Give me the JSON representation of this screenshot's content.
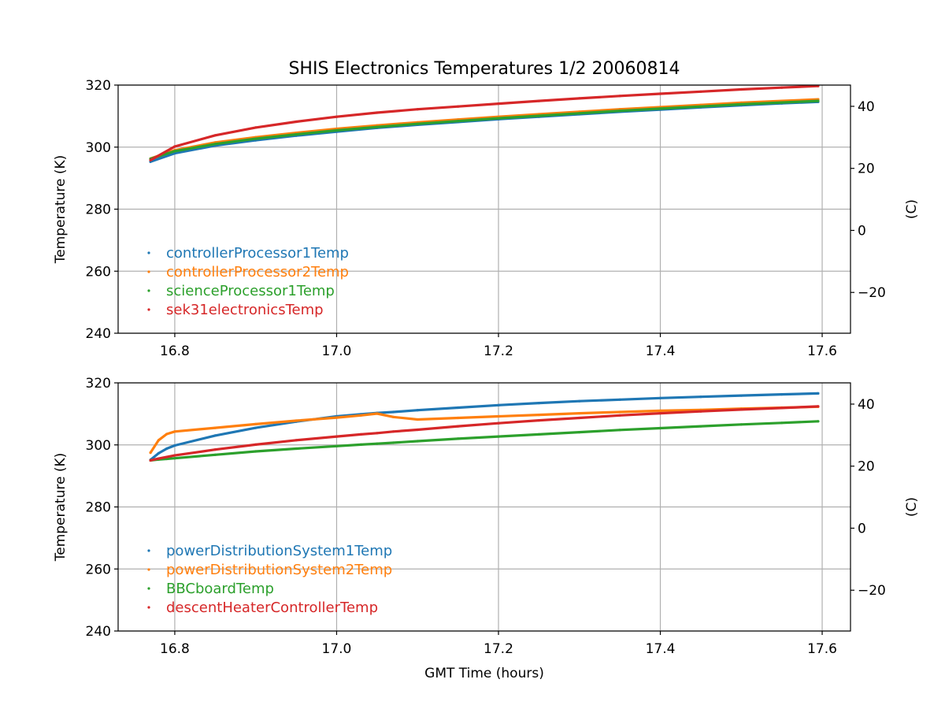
{
  "figure": {
    "title": "SHIS Electronics Temperatures 1/2 20060814"
  },
  "chart_data": [
    {
      "type": "scatter",
      "xlabel": "",
      "ylabel": "Temperature (K)",
      "ylabel_right": "(C)",
      "xlim": [
        16.73,
        17.635
      ],
      "ylim": [
        240,
        320
      ],
      "ylim_right": [
        -33.15,
        46.85
      ],
      "x_ticks": [
        "16.8",
        "17.0",
        "17.2",
        "17.4",
        "17.6"
      ],
      "y_ticks": [
        "240",
        "260",
        "280",
        "300",
        "320"
      ],
      "y_ticks_right": [
        "−20",
        "0",
        "20",
        "40"
      ],
      "grid": true,
      "legend_position": "lower-left",
      "x": [
        16.77,
        16.8,
        16.85,
        16.9,
        16.95,
        17.0,
        17.05,
        17.1,
        17.15,
        17.2,
        17.25,
        17.3,
        17.35,
        17.4,
        17.45,
        17.5,
        17.55,
        17.595
      ],
      "series": [
        {
          "name": "controllerProcessor1Temp",
          "color": "#1f77b4",
          "values": [
            295.3,
            298.0,
            300.5,
            302.2,
            303.7,
            305.0,
            306.2,
            307.2,
            308.1,
            309.0,
            309.8,
            310.6,
            311.4,
            312.1,
            312.8,
            313.5,
            314.1,
            314.6
          ]
        },
        {
          "name": "controllerProcessor2Temp",
          "color": "#ff7f0e",
          "values": [
            296.3,
            299.0,
            301.5,
            303.2,
            304.6,
            305.9,
            307.0,
            308.0,
            308.9,
            309.8,
            310.6,
            311.4,
            312.2,
            312.9,
            313.6,
            314.3,
            314.9,
            315.4
          ]
        },
        {
          "name": "scienceProcessor1Temp",
          "color": "#2ca02c",
          "values": [
            296.2,
            298.7,
            301.0,
            302.7,
            304.1,
            305.4,
            306.5,
            307.5,
            308.4,
            309.3,
            310.1,
            310.9,
            311.7,
            312.4,
            313.1,
            313.8,
            314.4,
            314.9
          ]
        },
        {
          "name": "sek31electronicsTemp",
          "color": "#d62728",
          "values": [
            295.8,
            300.2,
            303.8,
            306.3,
            308.2,
            309.8,
            311.1,
            312.2,
            313.1,
            314.0,
            314.9,
            315.7,
            316.5,
            317.2,
            317.9,
            318.6,
            319.2,
            319.7
          ]
        }
      ]
    },
    {
      "type": "scatter",
      "xlabel": "GMT Time (hours)",
      "ylabel": "Temperature (K)",
      "ylabel_right": "(C)",
      "xlim": [
        16.73,
        17.635
      ],
      "ylim": [
        240,
        320
      ],
      "ylim_right": [
        -33.15,
        46.85
      ],
      "x_ticks": [
        "16.8",
        "17.0",
        "17.2",
        "17.4",
        "17.6"
      ],
      "y_ticks": [
        "240",
        "260",
        "280",
        "300",
        "320"
      ],
      "y_ticks_right": [
        "−20",
        "0",
        "20",
        "40"
      ],
      "grid": true,
      "legend_position": "lower-left",
      "x": [
        16.77,
        16.78,
        16.79,
        16.8,
        16.85,
        16.9,
        16.95,
        17.0,
        17.03,
        17.05,
        17.07,
        17.1,
        17.15,
        17.2,
        17.25,
        17.3,
        17.35,
        17.4,
        17.45,
        17.5,
        17.55,
        17.595
      ],
      "series": [
        {
          "name": "powerDistributionSystem1Temp",
          "color": "#1f77b4",
          "values": [
            295.2,
            297.3,
            298.8,
            299.8,
            303.0,
            305.5,
            307.5,
            309.2,
            309.9,
            310.3,
            310.6,
            311.2,
            312.0,
            312.8,
            313.5,
            314.1,
            314.6,
            315.1,
            315.5,
            315.9,
            316.3,
            316.6
          ]
        },
        {
          "name": "powerDistributionSystem2Temp",
          "color": "#ff7f0e",
          "values": [
            297.5,
            301.5,
            303.5,
            304.3,
            305.5,
            306.7,
            307.8,
            308.8,
            309.5,
            310.1,
            309.0,
            308.2,
            308.7,
            309.2,
            309.7,
            310.2,
            310.6,
            311.0,
            311.3,
            311.7,
            312.0,
            312.3
          ]
        },
        {
          "name": "BBCboardTemp",
          "color": "#2ca02c",
          "values": [
            295.0,
            295.3,
            295.5,
            295.7,
            296.8,
            297.9,
            298.8,
            299.6,
            300.1,
            300.4,
            300.7,
            301.2,
            302.0,
            302.7,
            303.4,
            304.1,
            304.8,
            305.4,
            306.0,
            306.6,
            307.1,
            307.6
          ]
        },
        {
          "name": "descentHeaterControllerTemp",
          "color": "#d62728",
          "values": [
            295.0,
            295.6,
            296.1,
            296.6,
            298.5,
            300.1,
            301.5,
            302.7,
            303.4,
            303.8,
            304.3,
            304.9,
            306.0,
            307.0,
            307.9,
            308.7,
            309.5,
            310.2,
            310.8,
            311.4,
            311.9,
            312.4
          ]
        }
      ]
    }
  ]
}
